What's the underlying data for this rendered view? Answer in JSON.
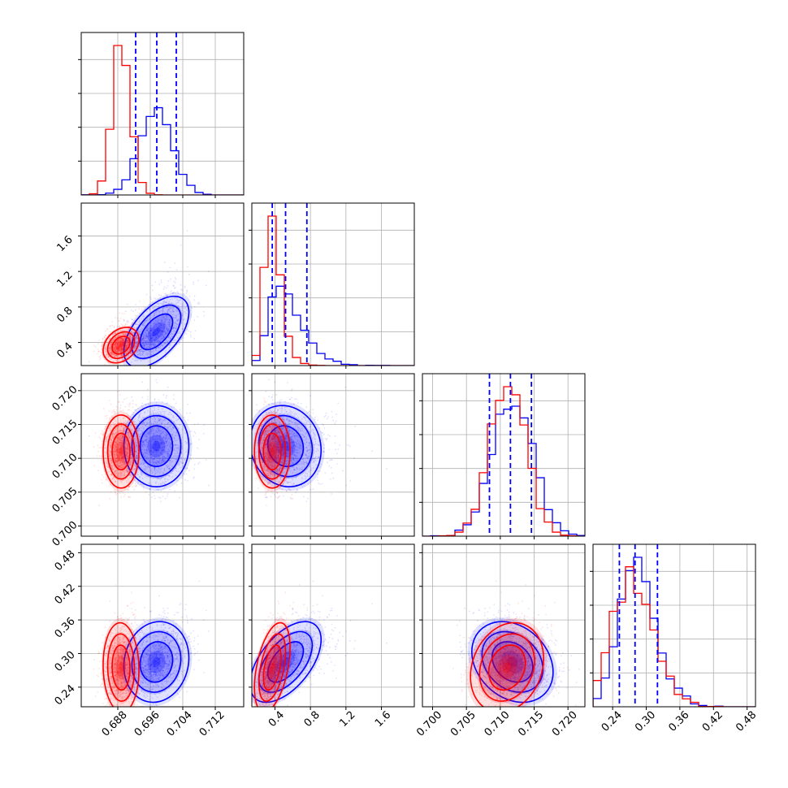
{
  "chart_data": {
    "type": "corner",
    "grid": true,
    "parameters": [
      {
        "ticks": [
          0.688,
          0.696,
          0.704,
          0.712
        ],
        "tick_labels": [
          "0.688",
          "0.696",
          "0.704",
          "0.712"
        ],
        "range": [
          0.679,
          0.719
        ]
      },
      {
        "ticks": [
          0.4,
          0.8,
          1.2,
          1.6
        ],
        "tick_labels": [
          "0.4",
          "0.8",
          "1.2",
          "1.6"
        ],
        "range": [
          0.14,
          1.97
        ]
      },
      {
        "ticks": [
          0.7,
          0.705,
          0.71,
          0.715,
          0.72
        ],
        "tick_labels": [
          "0.700",
          "0.705",
          "0.710",
          "0.715",
          "0.720"
        ],
        "range": [
          0.6985,
          0.7225
        ]
      },
      {
        "ticks": [
          0.24,
          0.3,
          0.36,
          0.42,
          0.48
        ],
        "tick_labels": [
          "0.24",
          "0.30",
          "0.36",
          "0.42",
          "0.48"
        ],
        "range": [
          0.205,
          0.495
        ]
      }
    ],
    "series": [
      {
        "color": "#0000ff",
        "means": [
          0.6975,
          0.52,
          0.7118,
          0.285
        ],
        "sigmas": [
          0.004,
          0.2,
          0.003,
          0.036
        ],
        "correlations": {
          "1-0": 0.55,
          "2-0": 0.0,
          "2-1": -0.1,
          "3-0": 0.1,
          "3-1": 0.55,
          "3-2": -0.25
        },
        "quantile_lines": [
          [
            0.6924,
            0.6976,
            0.7024
          ],
          [
            0.37,
            0.52,
            0.76
          ],
          [
            0.7084,
            0.7115,
            0.7146
          ],
          [
            0.252,
            0.28,
            0.32
          ]
        ]
      },
      {
        "color": "#ff0000",
        "means": [
          0.6888,
          0.37,
          0.711,
          0.275
        ],
        "sigmas": [
          0.0022,
          0.1,
          0.0027,
          0.04
        ],
        "correlations": {
          "1-0": 0.3,
          "2-0": 0.0,
          "2-1": 0.0,
          "3-0": -0.05,
          "3-1": 0.45,
          "3-2": 0.2
        },
        "quantile_lines": []
      }
    ]
  }
}
